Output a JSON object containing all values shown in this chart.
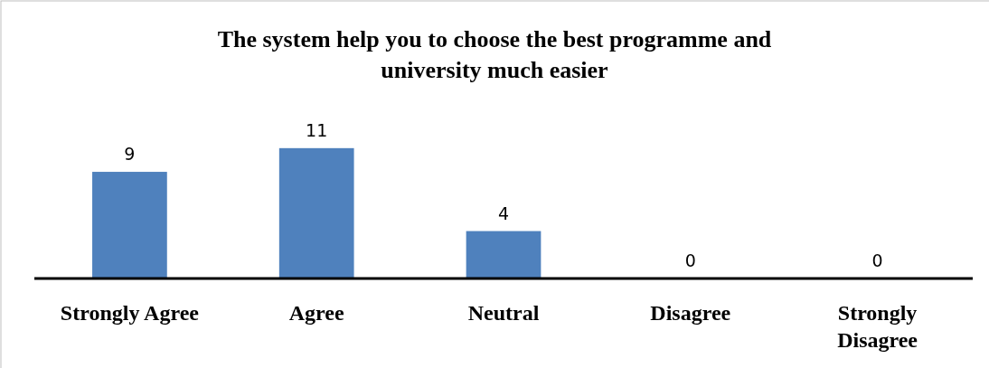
{
  "chart_data": {
    "type": "bar",
    "title": "The system help you to choose the best programme and university much easier",
    "categories": [
      "Strongly Agree",
      "Agree",
      "Neutral",
      "Disagree",
      "Strongly Disagree"
    ],
    "values": [
      9,
      11,
      4,
      0,
      0
    ],
    "color": "#4f81bd",
    "data_labels": true
  }
}
